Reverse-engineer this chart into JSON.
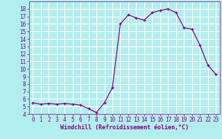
{
  "hours": [
    0,
    1,
    2,
    3,
    4,
    5,
    6,
    7,
    8,
    9,
    10,
    11,
    12,
    13,
    14,
    15,
    16,
    17,
    18,
    19,
    20,
    21,
    22,
    23
  ],
  "values": [
    5.5,
    5.3,
    5.4,
    5.3,
    5.4,
    5.3,
    5.2,
    4.7,
    4.2,
    5.5,
    7.5,
    16.0,
    17.2,
    16.8,
    16.5,
    17.5,
    17.8,
    18.0,
    17.5,
    15.5,
    15.3,
    13.2,
    10.5,
    9.3
  ],
  "line_color": "#800080",
  "marker": "+",
  "bg_color": "#b2eeee",
  "grid_color": "#ffffff",
  "xlabel": "Windchill (Refroidissement éolien,°C)",
  "xlabel_color": "#800080",
  "xlabel_fontsize": 6.0,
  "tick_color": "#800080",
  "tick_fontsize": 5.5,
  "ylim": [
    4,
    19
  ],
  "xlim": [
    -0.5,
    23.5
  ],
  "yticks": [
    4,
    5,
    6,
    7,
    8,
    9,
    10,
    11,
    12,
    13,
    14,
    15,
    16,
    17,
    18
  ],
  "xticks": [
    0,
    1,
    2,
    3,
    4,
    5,
    6,
    7,
    8,
    9,
    10,
    11,
    12,
    13,
    14,
    15,
    16,
    17,
    18,
    19,
    20,
    21,
    22,
    23
  ]
}
